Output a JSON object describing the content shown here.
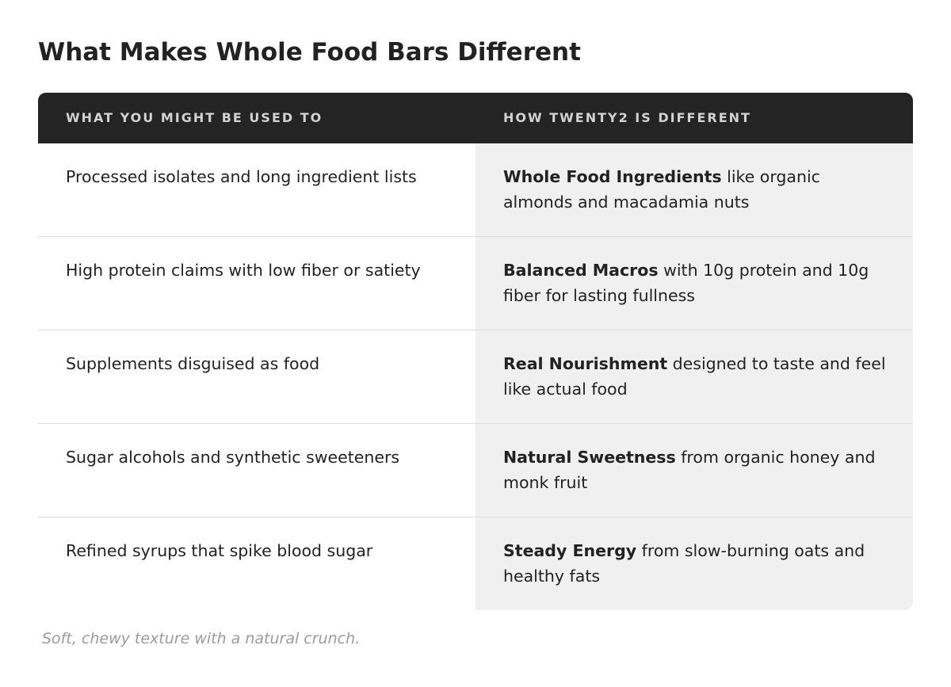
{
  "page": {
    "title": "What Makes Whole Food Bars Different",
    "footnote": "Soft, chewy texture with a natural crunch."
  },
  "table": {
    "headers": {
      "left": "WHAT YOU MIGHT BE USED TO",
      "right": "HOW TWENTY2 IS DIFFERENT"
    },
    "rows": [
      {
        "left": "Processed isolates and long ingredient lists",
        "right_bold": "Whole Food Ingredients",
        "right_rest": " like organic almonds and macadamia nuts"
      },
      {
        "left": "High protein claims with low fiber or satiety",
        "right_bold": "Balanced Macros",
        "right_rest": " with 10g protein and 10g fiber for lasting fullness"
      },
      {
        "left": "Supplements disguised as food",
        "right_bold": "Real Nourishment",
        "right_rest": " designed to taste and feel like actual food"
      },
      {
        "left": "Sugar alcohols and synthetic sweeteners",
        "right_bold": "Natural Sweetness",
        "right_rest": " from organic honey and monk fruit"
      },
      {
        "left": "Refined syrups that spike blood sugar",
        "right_bold": "Steady Energy",
        "right_rest": " from slow-burning oats and healthy fats"
      }
    ]
  },
  "colors": {
    "header_bg": "#242424",
    "header_text": "#d2d2d2",
    "right_column_bg": "#f0f0f0",
    "row_divider": "#dddddd",
    "footnote_text": "#9a9a9a"
  }
}
